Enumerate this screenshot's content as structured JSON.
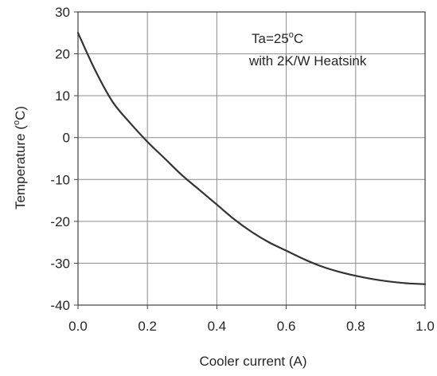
{
  "chart_data": {
    "type": "line",
    "title": "",
    "xlabel": "Cooler current  (A)",
    "ylabel": "Temperature  (°C)",
    "ylabel_parts": {
      "lead": "Temperature  (",
      "sup": "o",
      "tail": "C)"
    },
    "xlim": [
      0.0,
      1.0
    ],
    "ylim": [
      -40,
      30
    ],
    "grid": true,
    "x_ticks": [
      "0.0",
      "0.2",
      "0.4",
      "0.6",
      "0.8",
      "1.0"
    ],
    "y_ticks": [
      "30",
      "20",
      "10",
      "0",
      "-10",
      "-20",
      "-30",
      "-40"
    ],
    "annotations": [
      {
        "lead": "Ta=25",
        "sup": "o",
        "tail": "C"
      },
      {
        "lead": "with 2K/W Heatsink",
        "sup": "",
        "tail": ""
      }
    ],
    "series": [
      {
        "line_color": "#333333",
        "x": [
          0.0,
          0.05,
          0.1,
          0.15,
          0.2,
          0.25,
          0.3,
          0.35,
          0.4,
          0.45,
          0.5,
          0.55,
          0.6,
          0.65,
          0.7,
          0.75,
          0.8,
          0.85,
          0.9,
          0.95,
          1.0
        ],
        "y": [
          25,
          16,
          8.5,
          3.5,
          -1,
          -5,
          -9,
          -12.5,
          -16,
          -19.5,
          -22.5,
          -25,
          -27,
          -29,
          -30.7,
          -32,
          -33,
          -33.8,
          -34.4,
          -34.8,
          -35
        ]
      }
    ]
  }
}
